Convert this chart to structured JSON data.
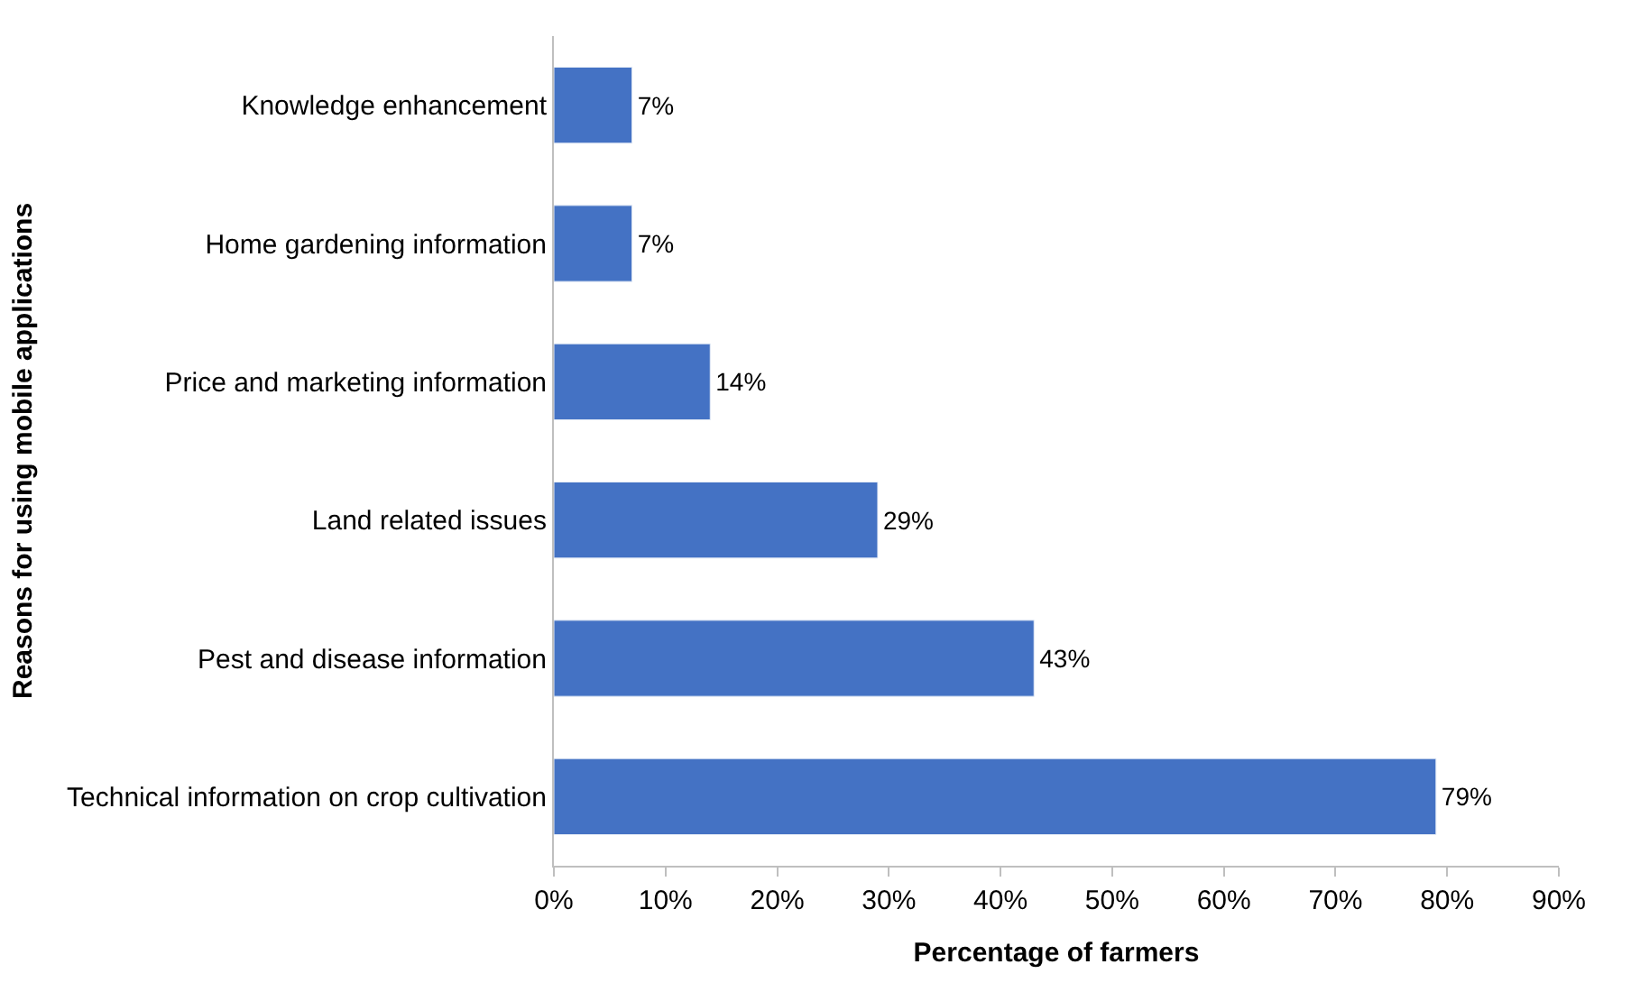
{
  "chart_data": {
    "type": "bar",
    "orientation": "horizontal",
    "xlabel": "Percentage of farmers",
    "ylabel": "Reasons for using mobile applications",
    "categories": [
      "Knowledge enhancement",
      "Home gardening information",
      "Price and marketing information",
      "Land related issues",
      "Pest and disease information",
      "Technical information on crop cultivation"
    ],
    "values": [
      7,
      7,
      14,
      29,
      43,
      79
    ],
    "value_labels": [
      "7%",
      "7%",
      "14%",
      "29%",
      "43%",
      "79%"
    ],
    "color": "#4472c4",
    "xlim": [
      0,
      90
    ],
    "xticks": [
      {
        "value": 0,
        "label": "0%"
      },
      {
        "value": 10,
        "label": "10%"
      },
      {
        "value": 20,
        "label": "20%"
      },
      {
        "value": 30,
        "label": "30%"
      },
      {
        "value": 40,
        "label": "40%"
      },
      {
        "value": 50,
        "label": "50%"
      },
      {
        "value": 60,
        "label": "60%"
      },
      {
        "value": 70,
        "label": "70%"
      },
      {
        "value": 80,
        "label": "80%"
      },
      {
        "value": 90,
        "label": "90%"
      }
    ],
    "legend": false
  }
}
